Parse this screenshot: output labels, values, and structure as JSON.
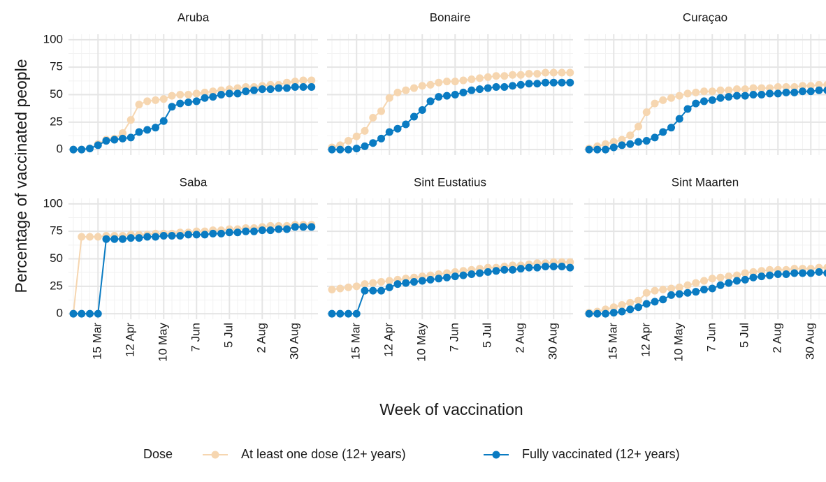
{
  "chart_data": {
    "type": "line",
    "y_label": "Percentage of vaccinated people",
    "x_label": "Week of vaccination",
    "legend_title": "Dose",
    "categories": [
      null,
      null,
      null,
      "15 Mar",
      null,
      null,
      null,
      "12 Apr",
      null,
      null,
      null,
      "10 May",
      null,
      null,
      null,
      "7 Jun",
      null,
      null,
      null,
      "5 Jul",
      null,
      null,
      null,
      "2 Aug",
      null,
      null,
      null,
      "30 Aug",
      null,
      null
    ],
    "series": [
      {
        "name": "At least one dose (12+ years)",
        "color": "#f6d6b0"
      },
      {
        "name": "Fully vaccinated (12+ years)",
        "color": "#0a7bc2"
      }
    ],
    "ylim": [
      -5,
      105
    ],
    "yticks": [
      0,
      25,
      50,
      75,
      100
    ],
    "grid": true,
    "panels": [
      {
        "title": "Aruba",
        "values": [
          [
            0,
            0,
            1,
            5,
            9,
            10,
            15,
            27,
            41,
            44,
            45,
            46,
            49,
            50,
            50,
            51,
            52,
            53,
            54,
            55,
            56,
            57,
            57,
            58,
            59,
            59,
            61,
            62,
            63,
            63
          ],
          [
            0,
            0,
            1,
            4,
            8,
            9,
            10,
            11,
            16,
            18,
            20,
            26,
            39,
            42,
            43,
            44,
            47,
            48,
            50,
            51,
            51,
            53,
            54,
            55,
            55,
            56,
            56,
            57,
            57,
            57
          ]
        ]
      },
      {
        "title": "Bonaire",
        "values": [
          [
            2,
            4,
            8,
            12,
            17,
            29,
            35,
            47,
            52,
            54,
            56,
            58,
            59,
            61,
            62,
            62,
            63,
            64,
            65,
            66,
            67,
            67,
            68,
            68,
            69,
            69,
            70,
            70,
            70,
            70
          ],
          [
            0,
            0,
            0,
            1,
            3,
            6,
            10,
            16,
            19,
            23,
            30,
            36,
            44,
            48,
            49,
            50,
            52,
            54,
            55,
            56,
            57,
            57,
            58,
            59,
            60,
            60,
            61,
            61,
            61,
            61
          ]
        ]
      },
      {
        "title": "Curaçao",
        "values": [
          [
            1,
            3,
            5,
            7,
            9,
            13,
            21,
            34,
            42,
            45,
            47,
            49,
            51,
            52,
            53,
            53,
            54,
            54,
            55,
            55,
            56,
            56,
            56,
            57,
            57,
            57,
            58,
            58,
            59,
            59
          ],
          [
            0,
            0,
            0,
            2,
            4,
            5,
            7,
            8,
            11,
            16,
            20,
            28,
            37,
            42,
            44,
            45,
            47,
            48,
            49,
            49,
            50,
            50,
            51,
            51,
            52,
            52,
            53,
            53,
            54,
            54
          ]
        ]
      },
      {
        "title": "Saba",
        "values": [
          [
            0,
            70,
            70,
            70,
            71,
            71,
            71,
            72,
            72,
            72,
            73,
            73,
            73,
            74,
            74,
            75,
            75,
            76,
            76,
            77,
            77,
            78,
            78,
            79,
            80,
            80,
            80,
            81,
            81,
            81
          ],
          [
            0,
            0,
            0,
            0,
            68,
            68,
            68,
            69,
            69,
            70,
            70,
            71,
            71,
            71,
            72,
            72,
            72,
            73,
            73,
            74,
            74,
            75,
            75,
            76,
            76,
            77,
            77,
            79,
            79,
            79
          ]
        ]
      },
      {
        "title": "Sint Eustatius",
        "values": [
          [
            22,
            23,
            24,
            25,
            27,
            28,
            29,
            30,
            31,
            32,
            33,
            34,
            35,
            36,
            37,
            38,
            39,
            40,
            41,
            42,
            42,
            43,
            44,
            44,
            45,
            46,
            46,
            47,
            47,
            47
          ],
          [
            0,
            0,
            0,
            0,
            21,
            21,
            21,
            24,
            27,
            28,
            29,
            30,
            31,
            32,
            33,
            34,
            35,
            36,
            37,
            38,
            39,
            40,
            40,
            41,
            42,
            42,
            43,
            43,
            43,
            42
          ]
        ]
      },
      {
        "title": "Sint Maarten",
        "values": [
          [
            1,
            2,
            4,
            6,
            8,
            10,
            12,
            19,
            21,
            22,
            23,
            24,
            26,
            28,
            30,
            32,
            33,
            34,
            35,
            37,
            38,
            39,
            40,
            40,
            40,
            41,
            41,
            41,
            42,
            42
          ],
          [
            0,
            0,
            0,
            1,
            2,
            4,
            6,
            9,
            11,
            13,
            17,
            18,
            19,
            20,
            22,
            23,
            26,
            28,
            30,
            31,
            33,
            34,
            35,
            36,
            36,
            37,
            37,
            37,
            38,
            37
          ]
        ]
      }
    ]
  }
}
